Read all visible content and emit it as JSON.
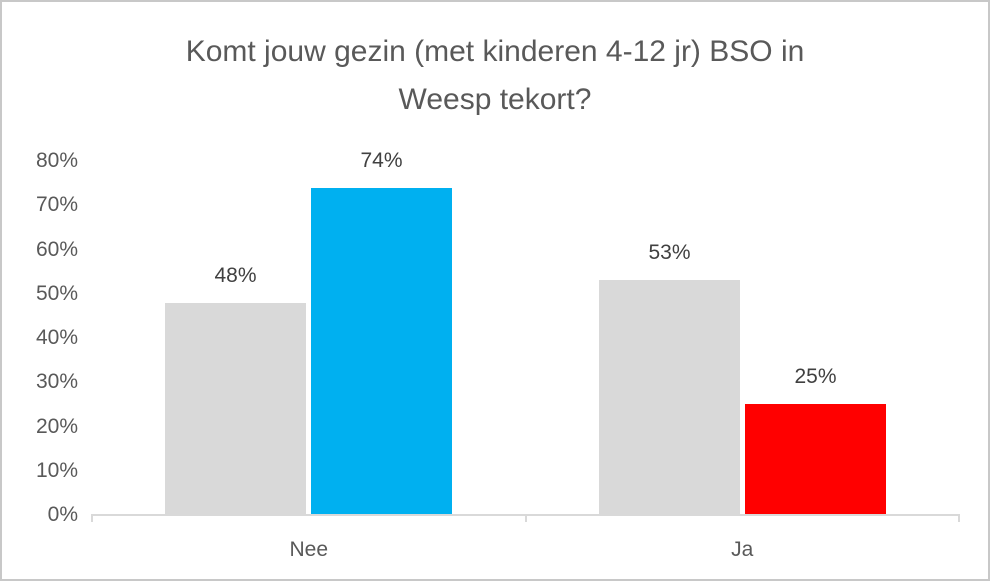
{
  "window": {
    "background_color": "#FFFFFF",
    "border_color": "#C8C8C8"
  },
  "chart_data": {
    "type": "bar",
    "title": "Komt jouw gezin (met kinderen 4-12 jr) BSO in Weesp tekort?",
    "title_lines": [
      "Komt jouw gezin (met kinderen 4-12 jr) BSO in",
      "Weesp tekort?"
    ],
    "categories": [
      "Nee",
      "Ja"
    ],
    "series": [
      {
        "name": "series-gray",
        "values": [
          48,
          53
        ],
        "data_labels": [
          "48%",
          "53%"
        ],
        "colors": [
          "#D9D9D9",
          "#D9D9D9"
        ]
      },
      {
        "name": "series-colored",
        "values": [
          74,
          25
        ],
        "data_labels": [
          "74%",
          "25%"
        ],
        "colors": [
          "#00B0F0",
          "#FF0000"
        ]
      }
    ],
    "y_axis": {
      "min": 0,
      "max": 80,
      "step": 10,
      "tick_labels": [
        "0%",
        "10%",
        "20%",
        "30%",
        "40%",
        "50%",
        "60%",
        "70%",
        "80%"
      ]
    },
    "grid": false,
    "legend": false,
    "styles": {
      "title_text_color": "#595959",
      "axis_text_color": "#595959",
      "data_label_color": "#404040",
      "axis_line_color": "#D9D9D9"
    }
  }
}
